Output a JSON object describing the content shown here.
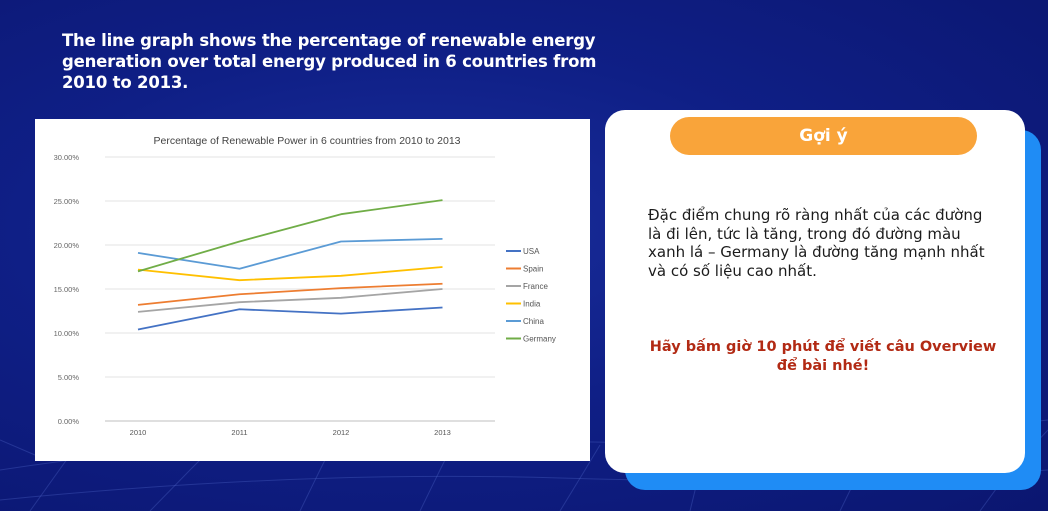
{
  "intro_text": "The line graph shows the percentage of renewable energy generation over total energy produced in 6 countries from 2010 to 2013.",
  "card": {
    "title": "Gợi ý",
    "hint": "Đặc điểm chung rõ ràng nhất của các đường là đi lên, tức là tăng, trong đó đường màu xanh lá – Germany là đường tăng mạnh nhất và có số liệu cao nhất.",
    "cta": "Hãy bấm giờ 10 phút để viết câu Overview để bài nhé!"
  },
  "colors": {
    "background": "#0f1f86",
    "card_shadow": "#1f8cf5",
    "pill": "#f9a43a",
    "cta": "#b22a14"
  },
  "chart_data": {
    "type": "line",
    "title": "Percentage of Renewable Power in 6 countries from 2010 to 2013",
    "xlabel": "",
    "ylabel": "",
    "categories": [
      "2010",
      "2011",
      "2012",
      "2013"
    ],
    "ylim": [
      0,
      30
    ],
    "yticks": [
      "0.00%",
      "5.00%",
      "10.00%",
      "15.00%",
      "20.00%",
      "25.00%",
      "30.00%"
    ],
    "grid": true,
    "legend_position": "right",
    "series": [
      {
        "name": "USA",
        "color": "#4472c4",
        "values": [
          10.4,
          12.7,
          12.2,
          12.9
        ]
      },
      {
        "name": "Spain",
        "color": "#ed7d31",
        "values": [
          13.2,
          14.4,
          15.1,
          15.6
        ]
      },
      {
        "name": "France",
        "color": "#a5a5a5",
        "values": [
          12.4,
          13.5,
          14.0,
          15.0
        ]
      },
      {
        "name": "India",
        "color": "#ffc000",
        "values": [
          17.2,
          16.0,
          16.5,
          17.5
        ]
      },
      {
        "name": "China",
        "color": "#5b9bd5",
        "values": [
          19.1,
          17.3,
          20.4,
          20.7
        ]
      },
      {
        "name": "Germany",
        "color": "#70ad47",
        "values": [
          17.0,
          20.4,
          23.5,
          25.1
        ]
      }
    ]
  }
}
